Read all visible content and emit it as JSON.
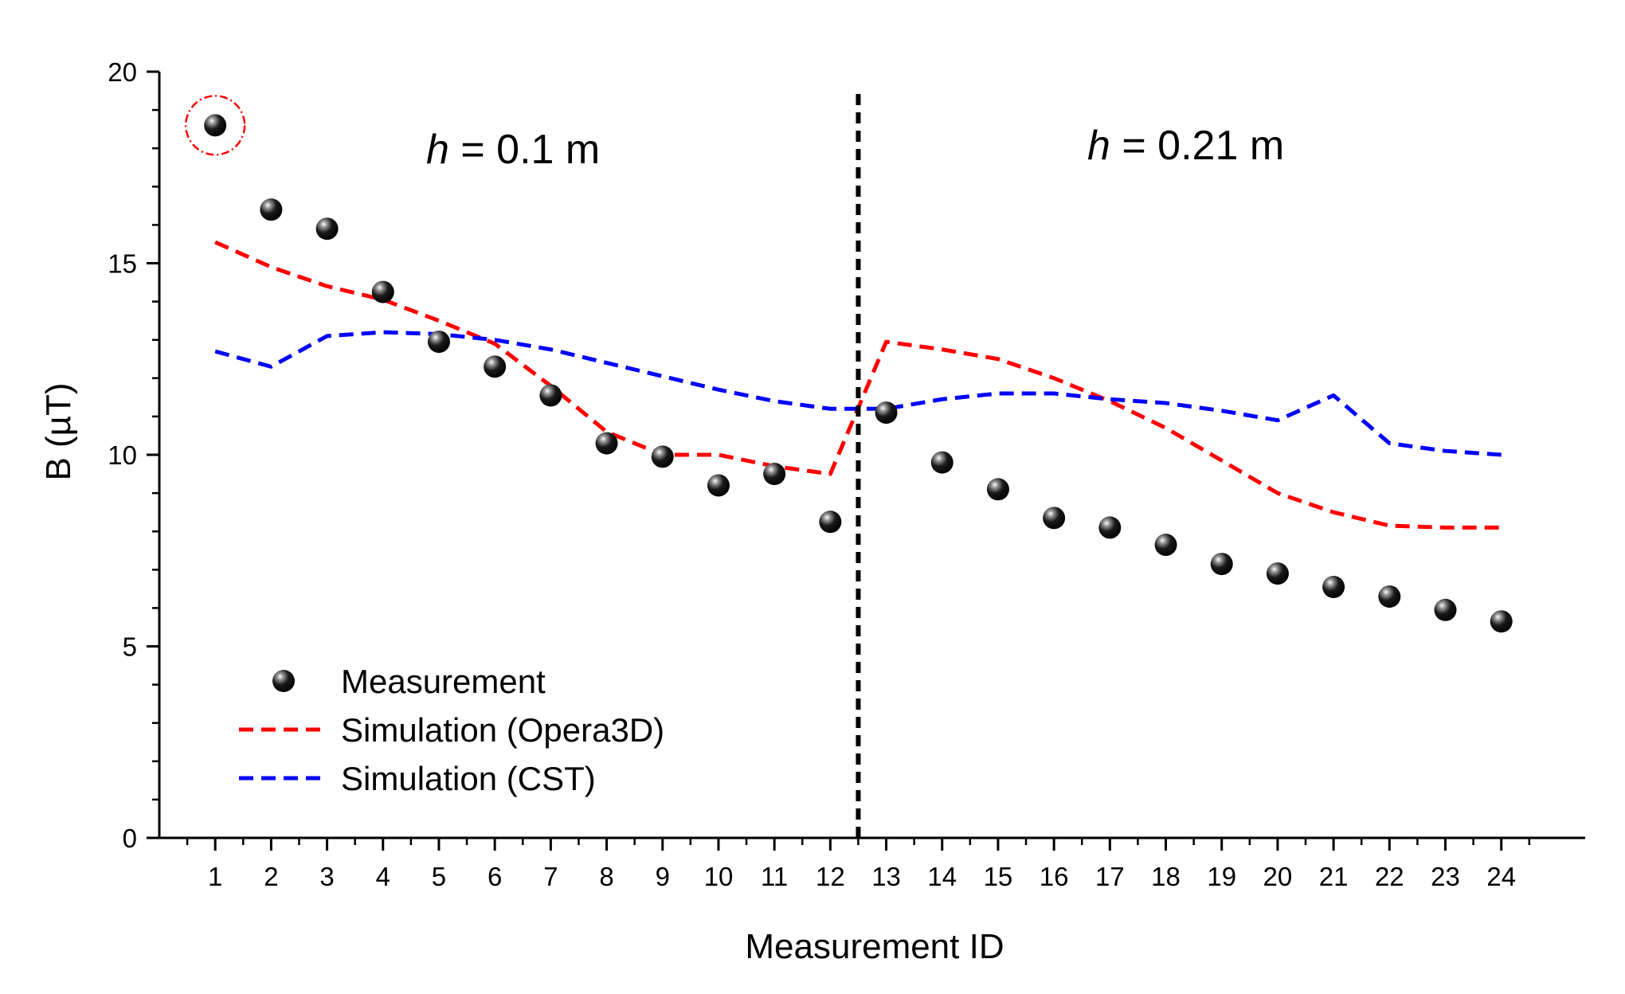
{
  "chart_data": {
    "type": "scatter+line",
    "xlabel": "Measurement ID",
    "ylabel": "B (µT)",
    "xlim": [
      0,
      25.5
    ],
    "ylim": [
      0,
      20
    ],
    "x": [
      1,
      2,
      3,
      4,
      5,
      6,
      7,
      8,
      9,
      10,
      11,
      12,
      13,
      14,
      15,
      16,
      17,
      18,
      19,
      20,
      21,
      22,
      23,
      24
    ],
    "x_tick_labels": [
      "1",
      "2",
      "3",
      "4",
      "5",
      "6",
      "7",
      "8",
      "9",
      "10",
      "11",
      "12",
      "13",
      "14",
      "15",
      "16",
      "17",
      "18",
      "19",
      "20",
      "21",
      "22",
      "23",
      "24"
    ],
    "y_ticks": [
      0,
      5,
      10,
      15,
      20
    ],
    "y_tick_labels": [
      "0",
      "5",
      "10",
      "15",
      "20"
    ],
    "series": [
      {
        "name": "Measurement",
        "kind": "scatter",
        "color": "#000000",
        "values": [
          18.6,
          16.4,
          15.9,
          14.25,
          12.95,
          12.3,
          11.55,
          10.3,
          9.95,
          9.2,
          9.5,
          8.25,
          11.1,
          9.8,
          9.1,
          8.35,
          8.1,
          7.65,
          7.15,
          6.9,
          6.55,
          6.3,
          5.95,
          5.65
        ]
      },
      {
        "name": "Simulation (Opera3D)",
        "kind": "line",
        "style": "dashed",
        "color": "#ff0000",
        "values": [
          15.55,
          14.9,
          14.4,
          14.05,
          13.5,
          12.9,
          11.8,
          10.6,
          10.0,
          10.0,
          9.7,
          9.5,
          12.95,
          12.75,
          12.5,
          12.0,
          11.4,
          10.7,
          9.85,
          9.0,
          8.5,
          8.15,
          8.1,
          8.1
        ]
      },
      {
        "name": "Simulation (CST)",
        "kind": "line",
        "style": "dashed",
        "color": "#0000ff",
        "values": [
          12.7,
          12.3,
          13.1,
          13.2,
          13.15,
          13.0,
          12.75,
          12.4,
          12.05,
          11.7,
          11.4,
          11.2,
          11.2,
          11.45,
          11.6,
          11.6,
          11.45,
          11.35,
          11.15,
          10.9,
          11.55,
          10.3,
          10.1,
          10.0
        ]
      }
    ],
    "divider": {
      "x": 12.5,
      "style": "dashed",
      "color": "#000000"
    },
    "annotations": [
      {
        "italic": "h",
        "text": " = 0.1 m",
        "region": "left"
      },
      {
        "italic": "h",
        "text": " = 0.21 m",
        "region": "right"
      }
    ],
    "highlight": {
      "point_index": 0,
      "color": "#ff0000",
      "style": "dash-dot circle"
    },
    "legend": {
      "position": "bottom-left",
      "entries": [
        "Measurement",
        "Simulation (Opera3D)",
        "Simulation (CST)"
      ]
    }
  }
}
